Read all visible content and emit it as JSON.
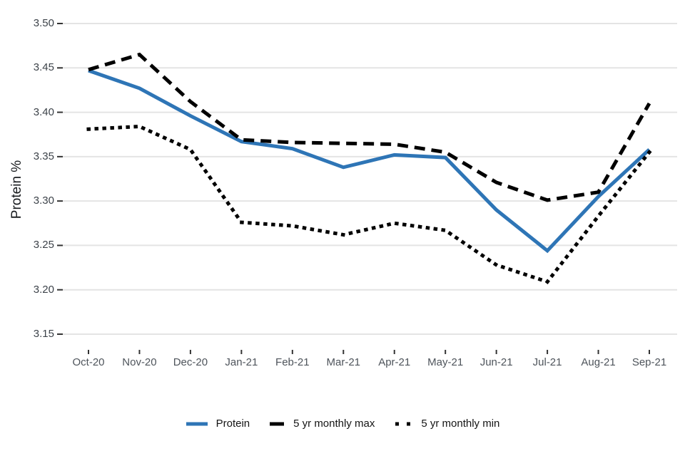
{
  "chart_data": {
    "type": "line",
    "title": "",
    "xlabel": "",
    "ylabel": "Protein %",
    "x_categories": [
      "Oct-20",
      "Nov-20",
      "Dec-20",
      "Jan-21",
      "Feb-21",
      "Mar-21",
      "Apr-21",
      "May-21",
      "Jun-21",
      "Jul-21",
      "Aug-21",
      "Sep-21"
    ],
    "y_ticks": [
      3.5,
      3.45,
      3.4,
      3.35,
      3.3,
      3.25,
      3.2,
      3.15
    ],
    "ylim": [
      3.15,
      3.5
    ],
    "grid": "horizontal-only",
    "legend_position": "bottom",
    "series": [
      {
        "name": "Protein",
        "style": "solid",
        "color": "#2e75b6",
        "values": [
          3.447,
          3.427,
          3.396,
          3.367,
          3.359,
          3.338,
          3.352,
          3.349,
          3.29,
          3.244,
          3.305,
          3.358
        ]
      },
      {
        "name": "5 yr monthly max",
        "style": "dashed",
        "color": "#000000",
        "values": [
          3.448,
          3.465,
          3.412,
          3.369,
          3.366,
          3.365,
          3.364,
          3.355,
          3.321,
          3.301,
          3.31,
          3.41
        ]
      },
      {
        "name": "5 yr monthly min",
        "style": "dotted",
        "color": "#000000",
        "values": [
          3.381,
          3.384,
          3.358,
          3.276,
          3.272,
          3.262,
          3.275,
          3.267,
          3.228,
          3.209,
          3.283,
          3.355
        ]
      }
    ],
    "colors": {
      "background": "#ffffff",
      "gridline": "#e4e4e4",
      "tick_mark": "#333333",
      "y_tick_text": "#3d434a",
      "x_tick_text": "#4e545b",
      "axis_title_text": "#16191c",
      "legend_text": "#141414"
    }
  }
}
